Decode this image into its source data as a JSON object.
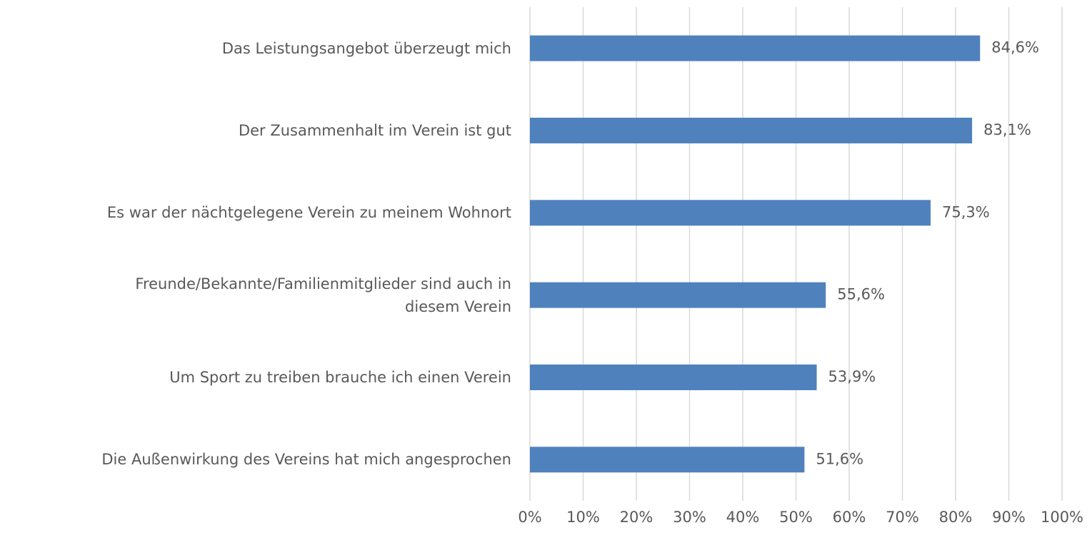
{
  "chart_data": {
    "type": "bar",
    "orientation": "horizontal",
    "categories": [
      "Das Leistungsangebot überzeugt mich",
      "Der Zusammenhalt im Verein ist gut",
      "Es war der nächtgelegene Verein zu meinem Wohnort",
      "Freunde/Bekannte/Familienmitglieder sind auch in\ndiesem Verein",
      "Um Sport zu treiben brauche ich einen Verein",
      "Die Außenwirkung des Vereins hat mich angesprochen"
    ],
    "values": [
      84.6,
      83.1,
      75.3,
      55.6,
      53.9,
      51.6
    ],
    "value_labels": [
      "84,6%",
      "83,1%",
      "75,3%",
      "55,6%",
      "53,9%",
      "51,6%"
    ],
    "color": "#4f81bd",
    "xlim": [
      0,
      100
    ],
    "xticks": [
      {
        "value": 0,
        "label": "0%"
      },
      {
        "value": 10,
        "label": "10%"
      },
      {
        "value": 20,
        "label": "20%"
      },
      {
        "value": 30,
        "label": "30%"
      },
      {
        "value": 40,
        "label": "40%"
      },
      {
        "value": 50,
        "label": "50%"
      },
      {
        "value": 60,
        "label": "60%"
      },
      {
        "value": 70,
        "label": "70%"
      },
      {
        "value": 80,
        "label": "80%"
      },
      {
        "value": 90,
        "label": "90%"
      },
      {
        "value": 100,
        "label": "100%"
      }
    ],
    "grid": true
  }
}
